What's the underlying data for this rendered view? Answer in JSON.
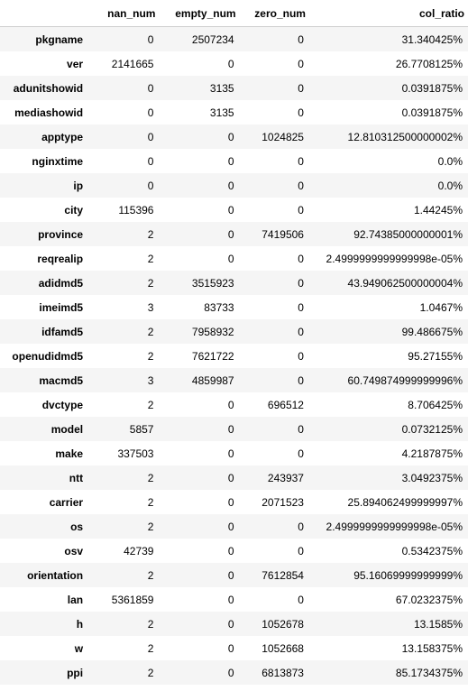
{
  "table": {
    "columns": [
      "",
      "nan_num",
      "empty_num",
      "zero_num",
      "col_ratio"
    ],
    "rows": [
      {
        "name": "pkgname",
        "nan_num": "0",
        "empty_num": "2507234",
        "zero_num": "0",
        "col_ratio": "31.340425%"
      },
      {
        "name": "ver",
        "nan_num": "2141665",
        "empty_num": "0",
        "zero_num": "0",
        "col_ratio": "26.7708125%"
      },
      {
        "name": "adunitshowid",
        "nan_num": "0",
        "empty_num": "3135",
        "zero_num": "0",
        "col_ratio": "0.0391875%"
      },
      {
        "name": "mediashowid",
        "nan_num": "0",
        "empty_num": "3135",
        "zero_num": "0",
        "col_ratio": "0.0391875%"
      },
      {
        "name": "apptype",
        "nan_num": "0",
        "empty_num": "0",
        "zero_num": "1024825",
        "col_ratio": "12.810312500000002%"
      },
      {
        "name": "nginxtime",
        "nan_num": "0",
        "empty_num": "0",
        "zero_num": "0",
        "col_ratio": "0.0%"
      },
      {
        "name": "ip",
        "nan_num": "0",
        "empty_num": "0",
        "zero_num": "0",
        "col_ratio": "0.0%"
      },
      {
        "name": "city",
        "nan_num": "115396",
        "empty_num": "0",
        "zero_num": "0",
        "col_ratio": "1.44245%"
      },
      {
        "name": "province",
        "nan_num": "2",
        "empty_num": "0",
        "zero_num": "7419506",
        "col_ratio": "92.74385000000001%"
      },
      {
        "name": "reqrealip",
        "nan_num": "2",
        "empty_num": "0",
        "zero_num": "0",
        "col_ratio": "2.4999999999999998e-05%"
      },
      {
        "name": "adidmd5",
        "nan_num": "2",
        "empty_num": "3515923",
        "zero_num": "0",
        "col_ratio": "43.949062500000004%"
      },
      {
        "name": "imeimd5",
        "nan_num": "3",
        "empty_num": "83733",
        "zero_num": "0",
        "col_ratio": "1.0467%"
      },
      {
        "name": "idfamd5",
        "nan_num": "2",
        "empty_num": "7958932",
        "zero_num": "0",
        "col_ratio": "99.486675%"
      },
      {
        "name": "openudidmd5",
        "nan_num": "2",
        "empty_num": "7621722",
        "zero_num": "0",
        "col_ratio": "95.27155%"
      },
      {
        "name": "macmd5",
        "nan_num": "3",
        "empty_num": "4859987",
        "zero_num": "0",
        "col_ratio": "60.749874999999996%"
      },
      {
        "name": "dvctype",
        "nan_num": "2",
        "empty_num": "0",
        "zero_num": "696512",
        "col_ratio": "8.706425%"
      },
      {
        "name": "model",
        "nan_num": "5857",
        "empty_num": "0",
        "zero_num": "0",
        "col_ratio": "0.0732125%"
      },
      {
        "name": "make",
        "nan_num": "337503",
        "empty_num": "0",
        "zero_num": "0",
        "col_ratio": "4.2187875%"
      },
      {
        "name": "ntt",
        "nan_num": "2",
        "empty_num": "0",
        "zero_num": "243937",
        "col_ratio": "3.0492375%"
      },
      {
        "name": "carrier",
        "nan_num": "2",
        "empty_num": "0",
        "zero_num": "2071523",
        "col_ratio": "25.894062499999997%"
      },
      {
        "name": "os",
        "nan_num": "2",
        "empty_num": "0",
        "zero_num": "0",
        "col_ratio": "2.4999999999999998e-05%"
      },
      {
        "name": "osv",
        "nan_num": "42739",
        "empty_num": "0",
        "zero_num": "0",
        "col_ratio": "0.5342375%"
      },
      {
        "name": "orientation",
        "nan_num": "2",
        "empty_num": "0",
        "zero_num": "7612854",
        "col_ratio": "95.16069999999999%"
      },
      {
        "name": "lan",
        "nan_num": "5361859",
        "empty_num": "0",
        "zero_num": "0",
        "col_ratio": "67.0232375%"
      },
      {
        "name": "h",
        "nan_num": "2",
        "empty_num": "0",
        "zero_num": "1052678",
        "col_ratio": "13.1585%"
      },
      {
        "name": "w",
        "nan_num": "2",
        "empty_num": "0",
        "zero_num": "1052668",
        "col_ratio": "13.158375%"
      },
      {
        "name": "ppi",
        "nan_num": "2",
        "empty_num": "0",
        "zero_num": "6813873",
        "col_ratio": "85.1734375%"
      }
    ]
  }
}
